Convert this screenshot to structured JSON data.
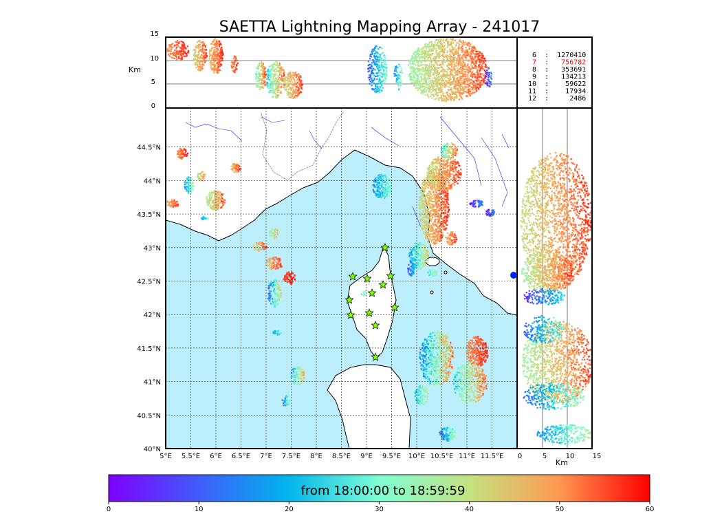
{
  "title": "SAETTA Lightning Mapping Array - 241017",
  "altitude_unit": "Km",
  "top_panel": {
    "y_ticks": [
      "15",
      "10",
      "5",
      "0"
    ]
  },
  "right_panel": {
    "x_ticks": [
      "0",
      "5",
      "10",
      "15"
    ]
  },
  "map": {
    "lon_ticks": [
      "5°E",
      "5.5°E",
      "6°E",
      "6.5°E",
      "7°E",
      "7.5°E",
      "8°E",
      "8.5°E",
      "9°E",
      "9.5°E",
      "10°E",
      "10.5°E",
      "11°E",
      "11.5°E"
    ],
    "lat_ticks": [
      "44.5°N",
      "44°N",
      "43.5°N",
      "43°N",
      "42.5°N",
      "42°N",
      "41.5°N",
      "41°N",
      "40.5°N",
      "40°N"
    ],
    "lon_range": [
      5.0,
      12.0
    ],
    "lat_range": [
      40.0,
      45.0
    ],
    "sea_color": "#bdeefb",
    "land_color": "#ffffff",
    "station_color": "#7fff00"
  },
  "altitude_counts": [
    {
      "label": " 6  :  1270410",
      "highlight": false
    },
    {
      "label": " 7  :   756782",
      "highlight": true
    },
    {
      "label": " 8  :   353691",
      "highlight": false
    },
    {
      "label": " 9  :   134213",
      "highlight": false
    },
    {
      "label": "10  :    59622",
      "highlight": false
    },
    {
      "label": "11  :    17934",
      "highlight": false
    },
    {
      "label": "12  :     2486",
      "highlight": false
    }
  ],
  "colorbar": {
    "label": "from 18:00:00 to 18:59:59",
    "ticks": [
      "0",
      "10",
      "20",
      "30",
      "40",
      "50",
      "60"
    ],
    "range": [
      0,
      60
    ]
  },
  "colors": {
    "highlight": "#ff0000",
    "text": "#000000"
  }
}
